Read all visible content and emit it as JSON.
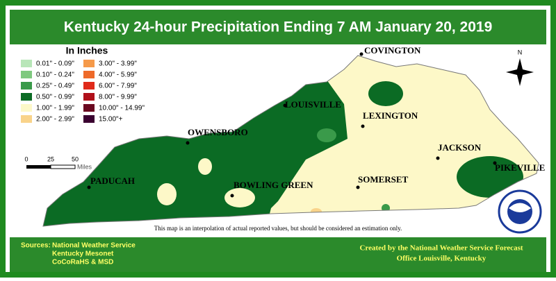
{
  "title": "Kentucky 24-hour Precipitation Ending 7 AM  January 20, 2019",
  "legend": {
    "title": "In Inches",
    "items": [
      {
        "label": "0.01\" - 0.09\"",
        "color": "#b8e6b8"
      },
      {
        "label": "0.10\" - 0.24\"",
        "color": "#7fc97f"
      },
      {
        "label": "0.25\" - 0.49\"",
        "color": "#3a9a4a"
      },
      {
        "label": "0.50\" - 0.99\"",
        "color": "#0b6b24"
      },
      {
        "label": "1.00\" - 1.99\"",
        "color": "#fdf8c8"
      },
      {
        "label": "2.00\" - 2.99\"",
        "color": "#f9d38a"
      },
      {
        "label": "3.00\" - 3.99\"",
        "color": "#f59a4a"
      },
      {
        "label": "4.00\" - 5.99\"",
        "color": "#ee6a2a"
      },
      {
        "label": "6.00\" - 7.99\"",
        "color": "#e02a1a"
      },
      {
        "label": "8.00\" - 9.99\"",
        "color": "#b0101a"
      },
      {
        "label": "10.00\" - 14.99\"",
        "color": "#6a0820"
      },
      {
        "label": "15.00\"+",
        "color": "#3a0030"
      }
    ]
  },
  "cities": [
    "COVINGTON",
    "LOUISVILLE",
    "LEXINGTON",
    "OWENSBORO",
    "JACKSON",
    "PIKEVILLE",
    "PADUCAH",
    "BOWLING GREEN",
    "SOMERSET"
  ],
  "scale": {
    "ticks": [
      "0",
      "25",
      "50"
    ],
    "unit": "Miles"
  },
  "north": "N",
  "disclaimer": "This map is an interpolation of actual reported values, but should be considered an estimation only.",
  "sources": {
    "label": "Sources:",
    "lines": [
      "National Weather Service",
      "Kentucky Mesonet",
      "CoCoRaHS & MSD"
    ]
  },
  "credit": [
    "Created by the National Weather Service Forecast",
    "Office Louisville, Kentucky"
  ]
}
